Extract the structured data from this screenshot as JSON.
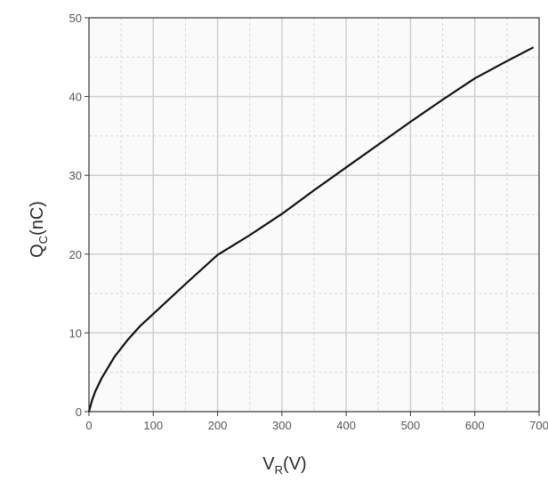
{
  "chart_data": {
    "type": "line",
    "title": "",
    "xlabel": {
      "main": "V",
      "sub": "R",
      "unit": "(V)"
    },
    "ylabel": {
      "main": "Q",
      "sub": "C",
      "unit": "(nC)"
    },
    "xlim": [
      0,
      700
    ],
    "ylim": [
      0,
      50
    ],
    "xticks": [
      0,
      100,
      200,
      300,
      400,
      500,
      600,
      700
    ],
    "yticks": [
      0,
      10,
      20,
      30,
      40,
      50
    ],
    "xtick_labels": [
      "0",
      "100",
      "200",
      "300",
      "400",
      "500",
      "600",
      "700"
    ],
    "ytick_labels": [
      "0",
      "10",
      "20",
      "30",
      "40",
      "50"
    ],
    "grid": true,
    "series": [
      {
        "color": "#111111",
        "x": [
          0,
          5,
          10,
          20,
          40,
          60,
          80,
          100,
          150,
          200,
          250,
          300,
          350,
          400,
          450,
          500,
          550,
          600,
          650,
          690
        ],
        "y": [
          0,
          1.5,
          2.6,
          4.3,
          7.0,
          9.1,
          10.9,
          12.4,
          16.2,
          19.9,
          22.4,
          25.1,
          28.1,
          31.0,
          33.9,
          36.8,
          39.6,
          42.3,
          44.5,
          46.2
        ]
      }
    ]
  }
}
